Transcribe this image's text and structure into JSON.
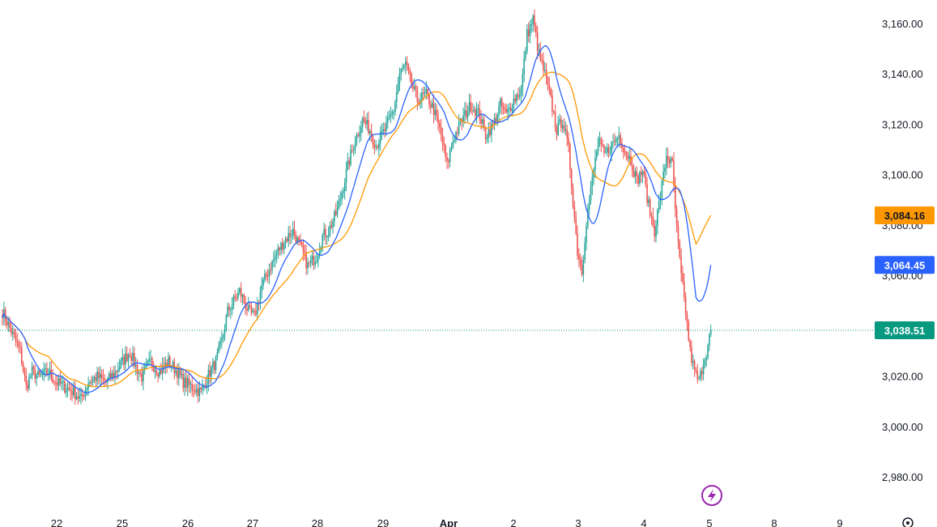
{
  "chart_data": {
    "type": "candlestick",
    "y_axis": {
      "ylim": [
        2970,
        3168
      ],
      "ticks": [
        2980,
        3000,
        3020,
        3040,
        3060,
        3080,
        3100,
        3120,
        3140,
        3160
      ],
      "tick_labels": [
        "2,980.00",
        "3,000.00",
        "3,020.00",
        "3,040.00",
        "3,060.00",
        "3,080.00",
        "3,100.00",
        "3,120.00",
        "3,140.00",
        "3,160.00"
      ]
    },
    "x_axis": {
      "tick_labels": [
        "22",
        "25",
        "26",
        "27",
        "28",
        "29",
        "Apr",
        "2",
        "3",
        "4",
        "5",
        "8",
        "9"
      ],
      "bold_label": "Apr"
    },
    "key_points": [
      [
        0,
        3046
      ],
      [
        6,
        3038
      ],
      [
        12,
        3030
      ],
      [
        16,
        3016
      ],
      [
        20,
        3022
      ],
      [
        25,
        3020
      ],
      [
        31,
        3022
      ],
      [
        36,
        3018
      ],
      [
        42,
        3016
      ],
      [
        48,
        3014
      ],
      [
        53,
        3011
      ],
      [
        58,
        3018
      ],
      [
        64,
        3020
      ],
      [
        70,
        3018
      ],
      [
        75,
        3021
      ],
      [
        81,
        3026
      ],
      [
        86,
        3030
      ],
      [
        90,
        3024
      ],
      [
        94,
        3020
      ],
      [
        100,
        3026
      ],
      [
        106,
        3022
      ],
      [
        112,
        3026
      ],
      [
        118,
        3022
      ],
      [
        122,
        3018
      ],
      [
        128,
        3016
      ],
      [
        134,
        3014
      ],
      [
        140,
        3022
      ],
      [
        144,
        3026
      ],
      [
        148,
        3034
      ],
      [
        152,
        3046
      ],
      [
        156,
        3050
      ],
      [
        160,
        3054
      ],
      [
        166,
        3046
      ],
      [
        170,
        3044
      ],
      [
        175,
        3056
      ],
      [
        181,
        3064
      ],
      [
        186,
        3070
      ],
      [
        190,
        3074
      ],
      [
        196,
        3078
      ],
      [
        202,
        3070
      ],
      [
        206,
        3064
      ],
      [
        212,
        3068
      ],
      [
        216,
        3076
      ],
      [
        220,
        3078
      ],
      [
        226,
        3086
      ],
      [
        230,
        3096
      ],
      [
        234,
        3106
      ],
      [
        238,
        3114
      ],
      [
        243,
        3122
      ],
      [
        248,
        3118
      ],
      [
        252,
        3112
      ],
      [
        258,
        3118
      ],
      [
        264,
        3126
      ],
      [
        268,
        3140
      ],
      [
        272,
        3144
      ],
      [
        276,
        3136
      ],
      [
        280,
        3130
      ],
      [
        286,
        3132
      ],
      [
        291,
        3126
      ],
      [
        296,
        3116
      ],
      [
        300,
        3104
      ],
      [
        304,
        3114
      ],
      [
        310,
        3122
      ],
      [
        316,
        3128
      ],
      [
        322,
        3124
      ],
      [
        326,
        3116
      ],
      [
        331,
        3120
      ],
      [
        336,
        3128
      ],
      [
        340,
        3124
      ],
      [
        345,
        3130
      ],
      [
        350,
        3134
      ],
      [
        354,
        3156
      ],
      [
        358,
        3162
      ],
      [
        362,
        3148
      ],
      [
        366,
        3140
      ],
      [
        370,
        3130
      ],
      [
        374,
        3118
      ],
      [
        378,
        3122
      ],
      [
        382,
        3110
      ],
      [
        385,
        3090
      ],
      [
        388,
        3070
      ],
      [
        391,
        3062
      ],
      [
        394,
        3082
      ],
      [
        398,
        3098
      ],
      [
        402,
        3114
      ],
      [
        406,
        3108
      ],
      [
        411,
        3112
      ],
      [
        416,
        3116
      ],
      [
        420,
        3110
      ],
      [
        424,
        3106
      ],
      [
        428,
        3098
      ],
      [
        432,
        3102
      ],
      [
        436,
        3088
      ],
      [
        440,
        3078
      ],
      [
        444,
        3092
      ],
      [
        448,
        3108
      ],
      [
        452,
        3104
      ],
      [
        455,
        3078
      ],
      [
        458,
        3060
      ],
      [
        461,
        3046
      ],
      [
        464,
        3030
      ],
      [
        467,
        3022
      ],
      [
        470,
        3018
      ],
      [
        473,
        3026
      ],
      [
        476,
        3032
      ],
      [
        478,
        3038.51
      ]
    ],
    "series": [
      {
        "name": "",
        "color": "#2962ff",
        "last_value": 3064.45,
        "last_label": "3,064.45"
      },
      {
        "name": "",
        "color": "#ff9800",
        "last_value": 3084.16,
        "last_label": "3,084.16"
      }
    ],
    "last_price": {
      "value": 3038.51,
      "label": "3,038.51"
    },
    "colors": {
      "up": "#26a69a",
      "down": "#ef5350",
      "fast_ma": "#2962ff",
      "slow_ma": "#ff9800",
      "grid": "none",
      "price_badge": "#089981"
    },
    "grid": false,
    "icons": [
      "lightning-icon",
      "settings-icon"
    ]
  }
}
